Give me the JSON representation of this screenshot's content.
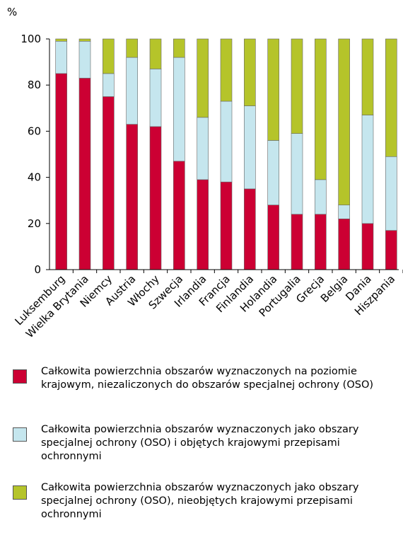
{
  "chart_data": {
    "type": "stacked_bar",
    "ylabel": "%",
    "categories": [
      "Luksemburg",
      "Wielka Brytania",
      "Niemcy",
      "Austria",
      "Włochy",
      "Szwecja",
      "Irlandia",
      "Francja",
      "Finlandia",
      "Holandia",
      "Portugalia",
      "Grecja",
      "Belgia",
      "Dania",
      "Hiszpania"
    ],
    "series": [
      {
        "name": "Całkowita powierzchnia obszarów wyznaczonych na poziomie krajowym, niezaliczonych do obszarów specjalnej ochrony (OSO)",
        "color": "#cc0033",
        "values": [
          85,
          83,
          75,
          63,
          62,
          47,
          39,
          38,
          35,
          28,
          24,
          24,
          22,
          20,
          17
        ]
      },
      {
        "name": "Całkowita powierzchnia obszarów wyznaczonych jako obszary specjalnej ochrony (OSO) i objętych krajowymi przepisami ochronnymi",
        "color": "#c5e6ee",
        "values": [
          14,
          16,
          10,
          29,
          25,
          45,
          27,
          35,
          36,
          28,
          35,
          15,
          6,
          47,
          32
        ]
      },
      {
        "name": "Całkowita powierzchnia obszarów wyznaczonych jako obszary specjalnej ochrony (OSO), nieobjętych krajowymi przepisami ochronnymi",
        "color": "#b5c42a",
        "values": [
          1,
          1,
          15,
          8,
          13,
          8,
          34,
          27,
          29,
          44,
          41,
          61,
          72,
          33,
          51
        ]
      }
    ],
    "ylim": [
      0,
      100
    ],
    "yticks": [
      0,
      20,
      40,
      60,
      80,
      100
    ]
  }
}
